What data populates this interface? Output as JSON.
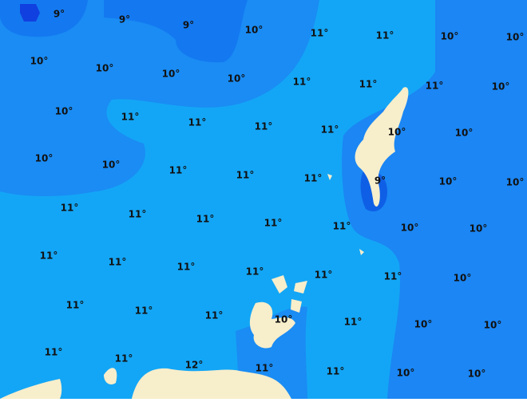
{
  "labels": [
    "9°",
    "9°",
    "9°",
    "10°",
    "11°",
    "11°",
    "10°",
    "10°",
    "10°",
    "10°",
    "10°",
    "10°",
    "11°",
    "11°",
    "11°",
    "10°",
    "10°",
    "11°",
    "11°",
    "11°",
    "11°",
    "10°",
    "10°",
    "10°",
    "10°",
    "11°",
    "11°",
    "11°",
    "9°",
    "10°",
    "10°",
    "11°",
    "11°",
    "11°",
    "11°",
    "11°",
    "10°",
    "10°",
    "11°",
    "11°",
    "11°",
    "11°",
    "11°",
    "11°",
    "10°",
    "11°",
    "11°",
    "11°",
    "10°",
    "11°",
    "10°",
    "10°",
    "11°",
    "11°",
    "12°",
    "11°",
    "11°",
    "10°",
    "10°"
  ]
}
